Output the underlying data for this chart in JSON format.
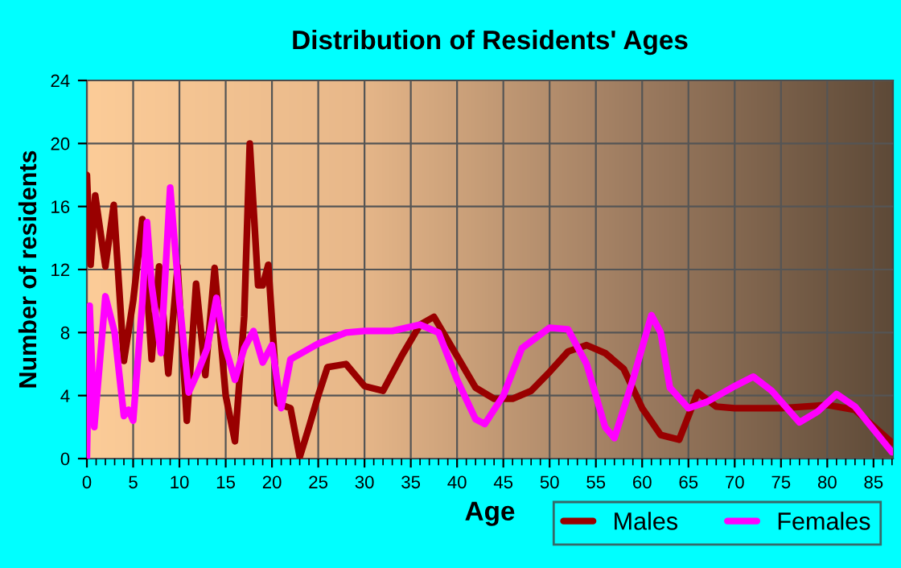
{
  "chart_data": {
    "type": "line",
    "title": "Distribution of Residents' Ages",
    "xlabel": "Age",
    "ylabel": "Number of residents",
    "xlim": [
      0,
      87.1
    ],
    "xticks": [
      0,
      5,
      10,
      15,
      20,
      25,
      30,
      35,
      40,
      45,
      50,
      55,
      60,
      65,
      70,
      75,
      80,
      85
    ],
    "ylim": [
      0,
      24
    ],
    "yticks": [
      0,
      4,
      8,
      12,
      16,
      20,
      24
    ],
    "grid": true,
    "legend": "bottom right",
    "series": [
      {
        "name": "Males",
        "color": "#990000",
        "x": [
          0,
          0.4,
          0.9,
          2,
          2.9,
          4,
          5,
          6,
          7,
          7.8,
          8.8,
          9.8,
          10.8,
          11.8,
          12.8,
          13.8,
          15,
          16,
          17,
          17.6,
          18.5,
          19,
          19.6,
          20.6,
          22,
          23,
          24,
          25,
          26,
          28,
          30,
          32,
          34,
          36,
          37.5,
          40,
          42,
          44,
          46,
          48,
          50,
          52,
          54,
          56,
          58,
          60,
          62,
          64,
          66,
          68,
          70,
          75,
          80,
          83,
          87
        ],
        "values": [
          18,
          12.3,
          16.7,
          12.2,
          16.1,
          6.2,
          10,
          15.2,
          6.3,
          12.2,
          5.4,
          12.2,
          2.4,
          11.1,
          5.3,
          12.1,
          4,
          1.1,
          9,
          20,
          11,
          11,
          12.3,
          3.5,
          3.2,
          0.1,
          2,
          4,
          5.8,
          6,
          4.6,
          4.3,
          6.5,
          8.5,
          9,
          6.5,
          4.5,
          3.8,
          3.8,
          4.3,
          5.5,
          6.8,
          7.2,
          6.7,
          5.7,
          3.2,
          1.5,
          1.2,
          4.2,
          3.3,
          3.2,
          3.2,
          3.4,
          3.1,
          1
        ]
      },
      {
        "name": "Females",
        "color": "#ff00ff",
        "x": [
          0,
          0.3,
          0.8,
          2,
          3,
          4,
          4.5,
          5,
          6,
          6.5,
          7,
          8,
          9,
          10,
          11,
          12,
          13,
          14,
          15,
          16,
          17,
          18,
          19,
          20,
          21,
          22,
          25,
          28,
          30,
          33,
          36,
          38,
          40,
          42,
          43,
          45,
          47,
          50,
          52,
          54,
          56,
          57,
          59,
          61,
          62,
          63,
          65,
          67,
          70,
          72,
          74,
          77,
          79,
          81,
          83,
          87
        ],
        "values": [
          0,
          9.7,
          2,
          10.3,
          8,
          2.7,
          3.1,
          2.4,
          10,
          15,
          11,
          6.7,
          17.2,
          10,
          4.2,
          5.5,
          7,
          10.2,
          7,
          5,
          7,
          8.1,
          6.1,
          7.2,
          3.2,
          6.3,
          7.3,
          8,
          8.1,
          8.1,
          8.5,
          8,
          5,
          2.5,
          2.2,
          4,
          7,
          8.3,
          8.2,
          6,
          2,
          1.3,
          5,
          9.1,
          8,
          4.5,
          3.2,
          3.6,
          4.6,
          5.2,
          4.3,
          2.3,
          3,
          4.1,
          3.3,
          0.4
        ]
      }
    ]
  }
}
